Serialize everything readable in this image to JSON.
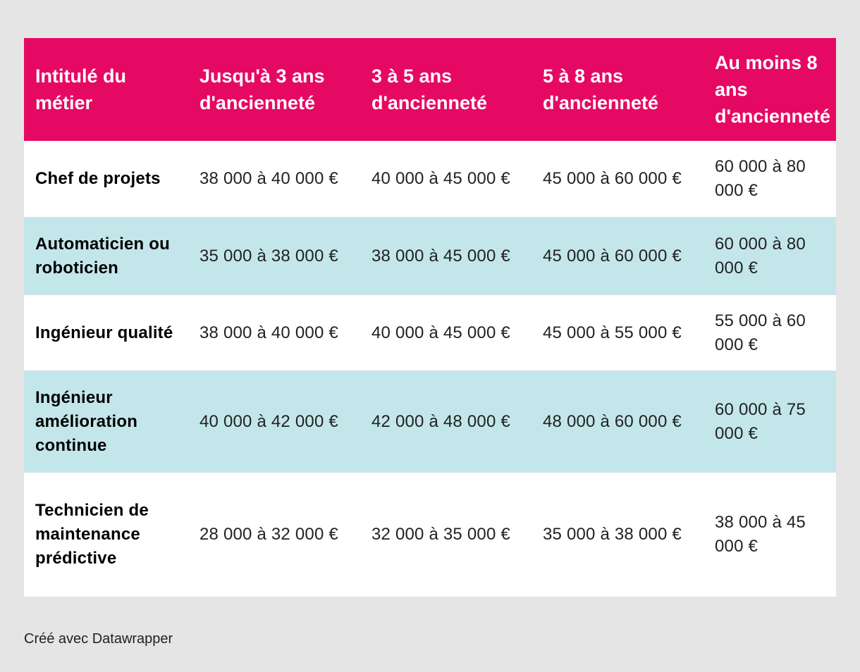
{
  "chart_data": {
    "type": "table",
    "columns": [
      "Intitulé du métier",
      "Jusqu'à 3 ans d'ancienneté",
      "3 à 5 ans d'ancienneté",
      "5 à 8 ans d'ancienneté",
      "Au moins 8 ans d'ancienneté"
    ],
    "rows": [
      {
        "job": "Chef de projets",
        "values": [
          "38 000 à 40 000 €",
          "40 000 à 45 000 €",
          "45 000 à 60 000 €",
          "60 000 à 80 000 €"
        ]
      },
      {
        "job": "Automaticien ou roboticien",
        "values": [
          "35 000 à 38 000 €",
          "38 000 à 45 000 €",
          "45 000 à 60 000 €",
          "60 000 à 80 000 €"
        ]
      },
      {
        "job": "Ingénieur qualité",
        "values": [
          "38 000 à 40 000 €",
          "40 000 à 45 000 €",
          "45 000 à 55 000 €",
          "55 000 à 60 000 €"
        ]
      },
      {
        "job": "Ingénieur amélioration continue",
        "values": [
          "40 000 à 42 000 €",
          "42 000 à 48 000 €",
          "48 000 à 60 000 €",
          "60 000 à 75 000 €"
        ]
      },
      {
        "job": "Technicien de maintenance prédictive",
        "values": [
          "28 000 à 32 000 €",
          "32 000 à 35 000 €",
          "35 000 à 38 000 €",
          "38 000 à 45 000 €"
        ]
      }
    ],
    "colors": {
      "header_bg": "#e60964",
      "header_text": "#ffffff",
      "row_alt": "#c3e6ea",
      "row_base": "#ffffff",
      "page_bg": "#e5e5e5"
    }
  },
  "footer": {
    "credit": "Créé avec Datawrapper"
  }
}
